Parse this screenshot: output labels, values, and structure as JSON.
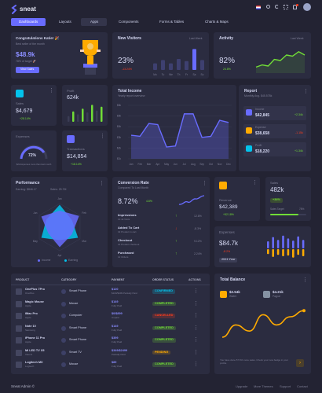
{
  "app": {
    "name": "sneat"
  },
  "nav": [
    {
      "label": "Dashboards"
    },
    {
      "label": "Layouts"
    },
    {
      "label": "Apps"
    },
    {
      "label": "Components"
    },
    {
      "label": "Forms & Tables"
    },
    {
      "label": "Charts & Maps"
    }
  ],
  "congrats": {
    "title": "Congratulations Katie! 🎉",
    "subtitle": "Best seller of the month",
    "amount": "$48.9k",
    "target": "78% of target 🚀",
    "button": "View Sales"
  },
  "visitors": {
    "title": "New Visitors",
    "period": "Last Week",
    "value": "23%",
    "change": "-13.24%",
    "days": [
      "Mo",
      "Tu",
      "We",
      "Th",
      "Fr",
      "Sa",
      "Su"
    ],
    "levels": [
      0.3,
      0.45,
      0.3,
      0.5,
      0.4,
      0.95,
      0.45
    ]
  },
  "activity": {
    "title": "Activity",
    "period": "Last Week",
    "value": "82%",
    "change": "24.8%",
    "line": [
      0.2,
      0.3,
      0.25,
      0.55,
      0.5,
      0.75,
      0.7,
      0.9,
      0.75
    ]
  },
  "sales_small": {
    "label": "Sales",
    "value": "$4,679",
    "change": "+28.14%"
  },
  "profit": {
    "label": "Profit",
    "value": "624k",
    "levels": [
      0.3,
      0.55,
      0.4,
      0.7,
      0.5,
      0.9,
      0.6,
      0.8
    ]
  },
  "total_income": {
    "title": "Total Income",
    "subtitle": "Yearly report overview",
    "months": [
      "Jan",
      "Feb",
      "Mar",
      "Apr",
      "May",
      "Jun",
      "Jul",
      "Aug",
      "Sep",
      "Oct",
      "Nov",
      "Dec"
    ],
    "ticks": [
      "$6k",
      "$5k",
      "$4k",
      "$3k",
      "$2k",
      "$1k"
    ],
    "values": [
      3.2,
      3.1,
      4.3,
      4.2,
      2.1,
      2.2,
      5.2,
      5.2,
      3.0,
      3.1,
      4.6,
      4.4
    ]
  },
  "report": {
    "title": "Report",
    "subtitle": "Monthly Avg. $45.578k",
    "items": [
      {
        "label": "Income",
        "value": "$42,845",
        "change": "+2.34k",
        "color": "#71dd37"
      },
      {
        "label": "Expense",
        "value": "$38,658",
        "change": "-1.15k",
        "color": "#ff3e1d"
      },
      {
        "label": "Profit",
        "value": "$18,220",
        "change": "+1.34k",
        "color": "#71dd37"
      }
    ]
  },
  "expenses_small": {
    "label": "Expenses",
    "value": "72%",
    "note": "$2k Expenses more than last month"
  },
  "transactions": {
    "label": "Transactions",
    "value": "$14,854",
    "change": "+18.14%"
  },
  "performance": {
    "title": "Performance",
    "earning": "Earning: $846.17",
    "sales": "Sales: 25.7M",
    "axes": [
      "Jan",
      "Feb",
      "Mar",
      "Apr",
      "May",
      "Jun"
    ],
    "legend": [
      "Income",
      "Earning"
    ]
  },
  "conversion": {
    "title": "Conversion Rate",
    "subtitle": "Compared To Last Month",
    "value": "8.72%",
    "change": "4.8%",
    "items": [
      {
        "label": "Impressions",
        "sub": "12.4k Visits",
        "pct": "12.8%",
        "up": true
      },
      {
        "label": "Added To Cart",
        "sub": "32 Product in cart",
        "pct": "-8.3%",
        "up": false
      },
      {
        "label": "Checkout",
        "sub": "21 Product checkout",
        "pct": "9.12%",
        "up": true
      },
      {
        "label": "Purchased",
        "sub": "12 Orders",
        "pct": "2.24%",
        "up": true
      }
    ]
  },
  "revenue": {
    "label": "Revenue",
    "value": "$42,389",
    "change": "+52.18%"
  },
  "sales_target": {
    "label": "Sales",
    "value": "482k",
    "badge": "+34%",
    "target": "Sales Target",
    "pct": "78%"
  },
  "expenses_big": {
    "label": "Expenses",
    "value": "$84.7k",
    "change": "-8.2%",
    "period": "2021 Year"
  },
  "orders": {
    "headers": [
      "PRODUCT",
      "CATEGORY",
      "PAYMENT",
      "ORDER STATUS",
      "ACTIONS"
    ],
    "rows": [
      {
        "name": "OnePlus 7Pro",
        "brand": "OnePlus",
        "cat": "Smart Phone",
        "amount": "$120",
        "pay": "$100/$499 Partially Paid",
        "status": "CONFIRMED",
        "color": "#03c3ec"
      },
      {
        "name": "Magic Mouse",
        "brand": "Apple",
        "cat": "Mouse",
        "amount": "$149",
        "pay": "Fully Paid",
        "status": "COMPLETED",
        "color": "#71dd37"
      },
      {
        "name": "iMac Pro",
        "brand": "Apple",
        "cat": "Computer",
        "amount": "$0/$899",
        "pay": "Unpaid",
        "status": "CANCELLED",
        "color": "#ff3e1d"
      },
      {
        "name": "Note 10",
        "brand": "Samsung",
        "cat": "Smart Phone",
        "amount": "$149",
        "pay": "Fully Paid",
        "status": "COMPLETED",
        "color": "#71dd37"
      },
      {
        "name": "iPhone 11 Pro",
        "brand": "Apple",
        "cat": "Smart Phone",
        "amount": "$399",
        "pay": "Fully Paid",
        "status": "COMPLETED",
        "color": "#71dd37"
      },
      {
        "name": "Mi LED TV X5",
        "brand": "Xiaomi",
        "cat": "Smart TV",
        "amount": "$349/$2499",
        "pay": "Partially Paid",
        "status": "PENDING",
        "color": "#ffab00"
      },
      {
        "name": "Logitech MX",
        "brand": "Logitech",
        "cat": "Mouse",
        "amount": "$89",
        "pay": "Fully Paid",
        "status": "COMPLETED",
        "color": "#71dd37"
      }
    ]
  },
  "balance": {
    "title": "Total Balance",
    "wallet": "$2.54k",
    "wallet_label": "Wallet",
    "paypal": "$4.21k",
    "paypal_label": "Paypal",
    "note": "You have done 57.6% more sales. Check your new badge in your profile.",
    "line": [
      0.75,
      0.45,
      0.6,
      0.2,
      0.45,
      0.25,
      0.1
    ]
  },
  "footer": {
    "brand": "Sneat Admin ©",
    "links": [
      "Upgrade",
      "More Themes",
      "Support",
      "Contact"
    ]
  },
  "colors": {
    "bg": "#232333",
    "card": "#2b2c40",
    "primary": "#696cff",
    "success": "#71dd37",
    "danger": "#ff3e1d",
    "warning": "#ffab00",
    "info": "#03c3ec"
  }
}
